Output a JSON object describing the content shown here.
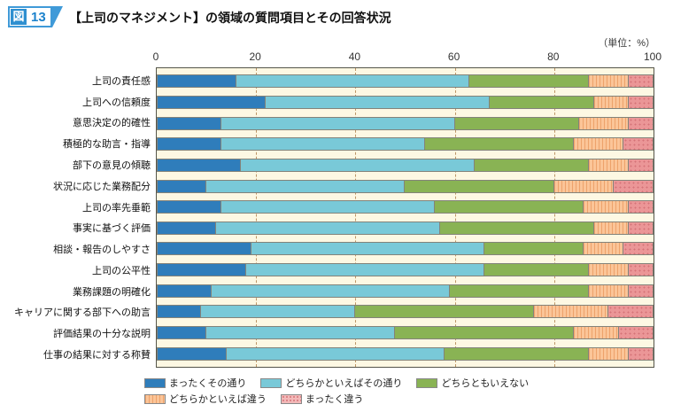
{
  "header": {
    "badge_prefix": "図",
    "badge_number": "13",
    "title": "【上司のマネジメント】の領域の質問項目とその回答状況"
  },
  "unit_label": "（単位：%）",
  "colors": {
    "badge_blue": "#3f9ad8",
    "series_blue": "#2f7dbb",
    "series_lightblue": "#79c9d8",
    "series_green": "#89b354",
    "series_orange": "#fbc598",
    "series_pink": "#eb9697",
    "plot_background": "#fdf8e3",
    "gridline": "#bd9565"
  },
  "chart_data": {
    "type": "bar",
    "stacked": true,
    "orientation": "horizontal",
    "grid": true,
    "legend_position": "bottom",
    "xlim": [
      0,
      100
    ],
    "x_ticks": [
      "0",
      "20",
      "40",
      "60",
      "80",
      "100"
    ],
    "categories": [
      "上司の責任感",
      "上司への信頼度",
      "意思決定の的確性",
      "積極的な助言・指導",
      "部下の意見の傾聴",
      "状況に応じた業務配分",
      "上司の率先垂範",
      "事実に基づく評価",
      "相談・報告のしやすさ",
      "上司の公平性",
      "業務課題の明確化",
      "キャリアに関する部下への助言",
      "評価結果の十分な説明",
      "仕事の結果に対する称賛"
    ],
    "series": [
      {
        "name": "まったくその通り",
        "color": "#2f7dbb",
        "pattern": "solid",
        "values": [
          16,
          22,
          13,
          13,
          17,
          10,
          13,
          12,
          19,
          18,
          11,
          9,
          10,
          14
        ]
      },
      {
        "name": "どちらかといえばその通り",
        "color": "#79c9d8",
        "pattern": "solid",
        "values": [
          47,
          45,
          47,
          41,
          47,
          40,
          43,
          45,
          47,
          48,
          48,
          31,
          38,
          44
        ]
      },
      {
        "name": "どちらともいえない",
        "color": "#89b354",
        "pattern": "solid",
        "values": [
          24,
          21,
          25,
          30,
          23,
          30,
          30,
          31,
          20,
          21,
          28,
          36,
          36,
          29
        ]
      },
      {
        "name": "どちらかといえば違う",
        "color": "#fbc598",
        "pattern": "vertical-hatch",
        "values": [
          8,
          7,
          10,
          10,
          8,
          12,
          9,
          7,
          8,
          8,
          8,
          15,
          9,
          8
        ]
      },
      {
        "name": "まったく違う",
        "color": "#eb9697",
        "pattern": "dots",
        "values": [
          5,
          5,
          5,
          6,
          5,
          8,
          5,
          5,
          6,
          5,
          5,
          9,
          7,
          5
        ]
      }
    ],
    "legend_rows": [
      [
        0,
        1,
        2
      ],
      [
        3,
        4
      ]
    ]
  }
}
